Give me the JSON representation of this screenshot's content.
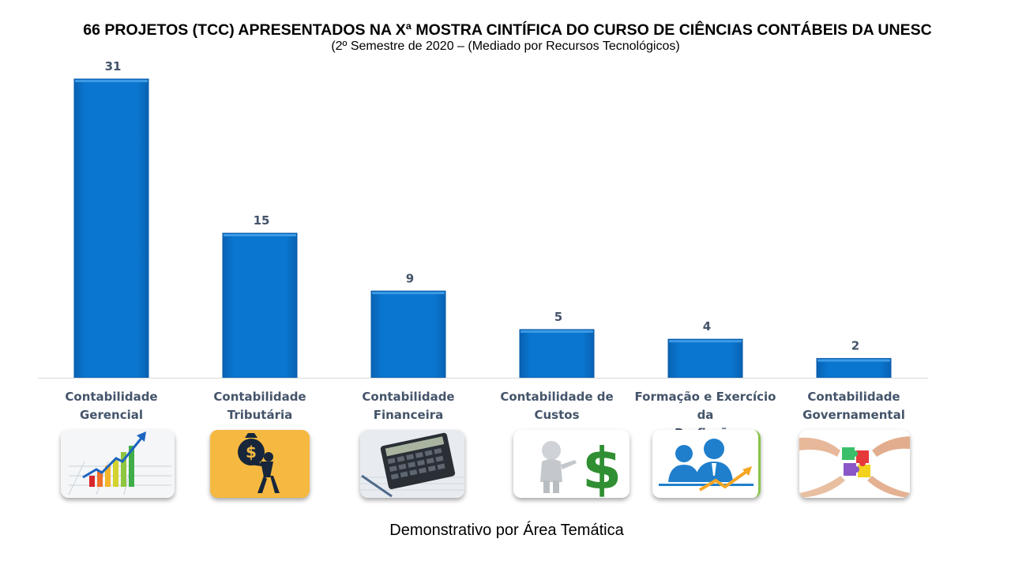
{
  "chart_data": {
    "type": "bar",
    "title": "66 PROJETOS (TCC) APRESENTADOS  NA Xª MOSTRA CINTÍFICA DO CURSO DE CIÊNCIAS CONTÁBEIS DA UNESC",
    "subtitle": "(2º Semestre de 2020 – (Mediado por Recursos Tecnológicos)",
    "xlabel": "Demonstrativo por Área Temática",
    "ylabel": "",
    "ylim": [
      0,
      31
    ],
    "grid": false,
    "categories": [
      [
        "Contabilidade",
        "Gerencial"
      ],
      [
        "Contabilidade",
        "Tributária"
      ],
      [
        "Contabilidade",
        "Financeira"
      ],
      [
        "Contabilidade de",
        "Custos"
      ],
      [
        "Formação e Exercício da",
        "Profissão"
      ],
      [
        "Contabilidade",
        "Governamental"
      ]
    ],
    "values": [
      31,
      15,
      9,
      5,
      4,
      2
    ],
    "bar_color": "#0a76d0",
    "label_color": "#44546a"
  },
  "images": [
    {
      "icon": "growth-chart-icon"
    },
    {
      "icon": "tax-burden-icon"
    },
    {
      "icon": "calculator-icon"
    },
    {
      "icon": "dollar-figure-icon"
    },
    {
      "icon": "professionals-icon"
    },
    {
      "icon": "puzzle-hands-icon"
    }
  ]
}
